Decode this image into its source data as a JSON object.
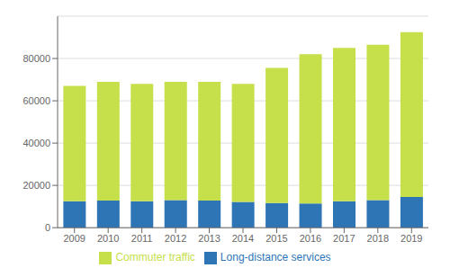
{
  "chart_data": {
    "type": "bar",
    "stacked": true,
    "categories": [
      "2009",
      "2010",
      "2011",
      "2012",
      "2013",
      "2014",
      "2015",
      "2016",
      "2017",
      "2018",
      "2019"
    ],
    "series": [
      {
        "name": "Long-distance services",
        "color": "#2e75b6",
        "values": [
          12500,
          12800,
          12500,
          13000,
          12800,
          12200,
          11700,
          11400,
          12500,
          13000,
          14500
        ]
      },
      {
        "name": "Commuter traffic",
        "color": "#c5e04b",
        "values": [
          54500,
          56200,
          55500,
          56000,
          56200,
          55800,
          63800,
          70600,
          72500,
          73500,
          78000
        ]
      }
    ],
    "ylim": [
      0,
      100000
    ],
    "yticks": [
      0,
      20000,
      40000,
      60000,
      80000
    ],
    "grid": true,
    "legend": "bottom"
  }
}
